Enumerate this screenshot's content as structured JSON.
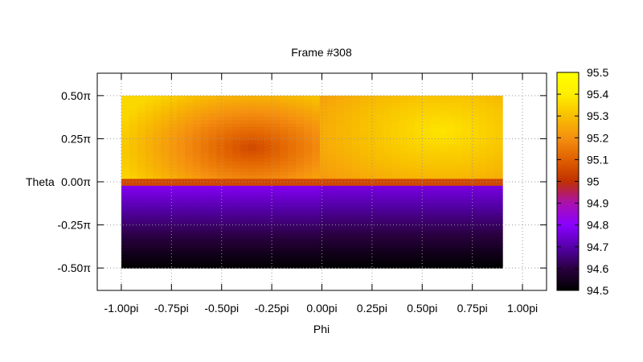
{
  "chart_data": {
    "type": "heatmap",
    "title": "Frame #308",
    "xlabel": "Phi",
    "ylabel": "Theta",
    "xlim": [
      -1.12,
      1.12
    ],
    "ylim": [
      -0.63,
      0.63
    ],
    "x_ticks": [
      {
        "value": -1.0,
        "label": "-1.00pi"
      },
      {
        "value": -0.75,
        "label": "-0.75pi"
      },
      {
        "value": -0.5,
        "label": "-0.50pi"
      },
      {
        "value": -0.25,
        "label": "-0.25pi"
      },
      {
        "value": 0.0,
        "label": "0.00pi"
      },
      {
        "value": 0.25,
        "label": "0.25pi"
      },
      {
        "value": 0.5,
        "label": "0.50pi"
      },
      {
        "value": 0.75,
        "label": "0.75pi"
      },
      {
        "value": 1.0,
        "label": "1.00pi"
      }
    ],
    "y_ticks": [
      {
        "value": 0.5,
        "label": "0.50π"
      },
      {
        "value": 0.25,
        "label": "0.25π"
      },
      {
        "value": 0.0,
        "label": "0.00π"
      },
      {
        "value": -0.25,
        "label": "-0.25π"
      },
      {
        "value": -0.5,
        "label": "-0.50π"
      }
    ],
    "grid": true,
    "colorbar": {
      "range": [
        94.5,
        95.5
      ],
      "ticks": [
        "95.5",
        "95.4",
        "95.3",
        "95.2",
        "95.1",
        "95",
        "94.9",
        "94.8",
        "94.7",
        "94.6",
        "94.5"
      ],
      "tick_values": [
        95.5,
        95.4,
        95.3,
        95.2,
        95.1,
        95.0,
        94.9,
        94.8,
        94.7,
        94.6,
        94.5
      ],
      "colors": [
        "#000000",
        "#2a0040",
        "#5500aa",
        "#8a00ff",
        "#aa10b0",
        "#c03000",
        "#e06000",
        "#f59010",
        "#f8c000",
        "#ffee00",
        "#ffff00"
      ],
      "color_stops": [
        0.0,
        0.1,
        0.2,
        0.3,
        0.4,
        0.5,
        0.6,
        0.7,
        0.8,
        0.9,
        1.0
      ]
    },
    "data_extent": {
      "phi": [
        -1.0,
        0.9
      ],
      "theta": [
        -0.5,
        0.5
      ]
    },
    "regions": [
      {
        "name": "upper-left",
        "phi": [
          -1.0,
          0.0
        ],
        "theta": [
          0.0,
          0.5
        ],
        "min": 95.05,
        "max": 95.35
      },
      {
        "name": "upper-right",
        "phi": [
          0.0,
          0.9
        ],
        "theta": [
          0.0,
          0.5
        ],
        "min": 95.2,
        "max": 95.38
      },
      {
        "name": "lower-left",
        "phi": [
          -1.0,
          0.0
        ],
        "theta": [
          -0.5,
          0.0
        ],
        "min": 94.5,
        "max": 94.8
      },
      {
        "name": "lower-right",
        "phi": [
          0.0,
          0.9
        ],
        "theta": [
          -0.5,
          0.0
        ],
        "min": 94.5,
        "max": 94.78
      }
    ]
  }
}
